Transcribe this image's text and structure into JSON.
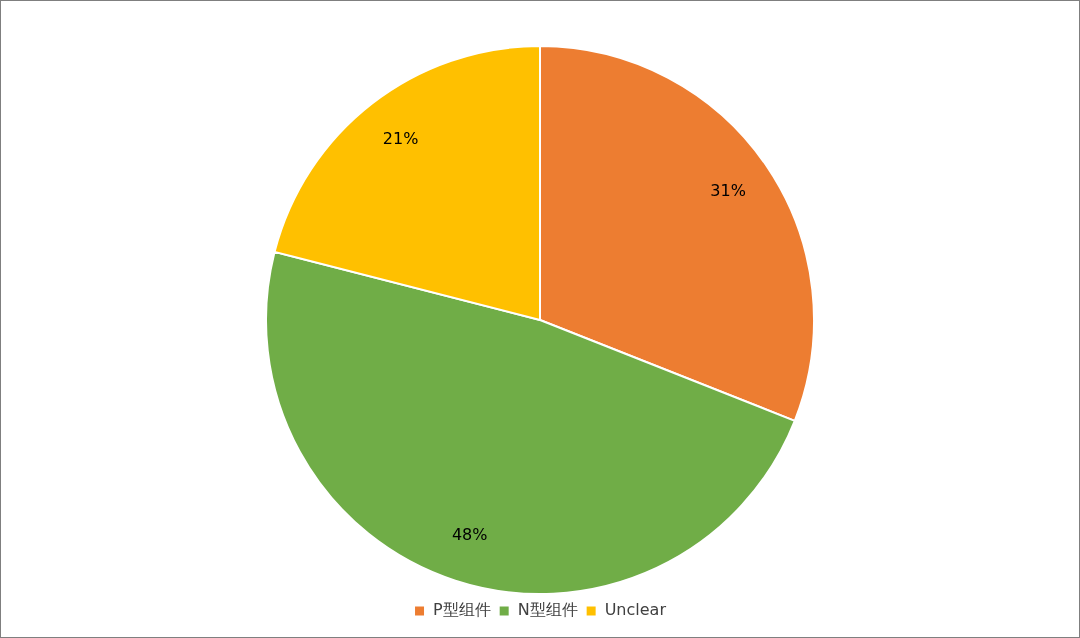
{
  "chart_data": {
    "type": "pie",
    "categories": [
      "P型组件",
      "N型组件",
      "Unclear"
    ],
    "values": [
      31,
      48,
      21
    ],
    "colors": [
      "#ed7d31",
      "#70ad47",
      "#ffc000"
    ],
    "value_labels": [
      "31%",
      "48%",
      "21%"
    ],
    "legend": "bottom"
  }
}
